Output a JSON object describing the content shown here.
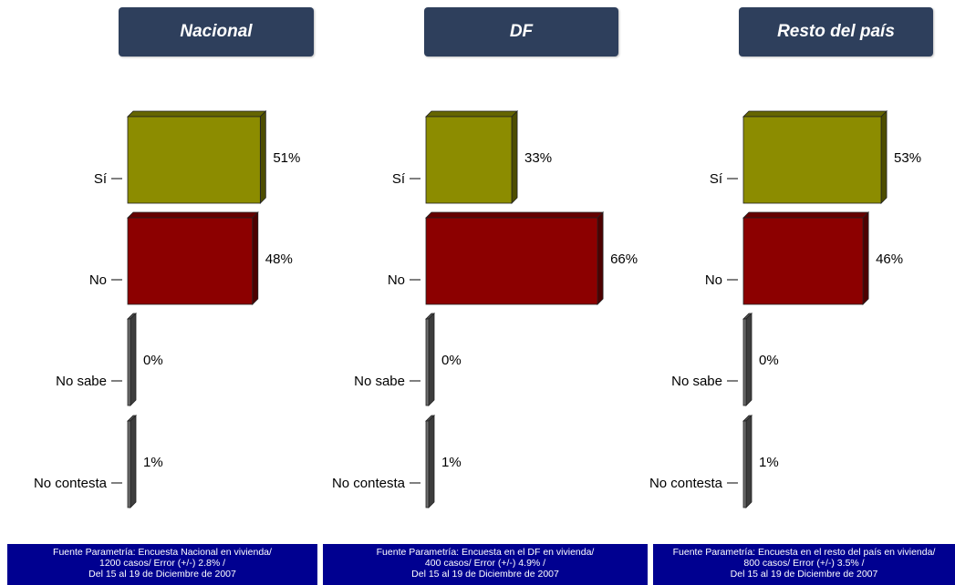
{
  "titles": [
    "Nacional",
    "DF",
    "Resto del país"
  ],
  "chart_data": [
    {
      "type": "bar",
      "title": "Nacional",
      "categories": [
        "Sí",
        "No",
        "No sabe",
        "No contesta"
      ],
      "values": [
        51,
        48,
        0,
        1
      ],
      "value_labels": [
        "51%",
        "48%",
        "0%",
        "1%"
      ]
    },
    {
      "type": "bar",
      "title": "DF",
      "categories": [
        "Sí",
        "No",
        "No sabe",
        "No contesta"
      ],
      "values": [
        33,
        66,
        0,
        1
      ],
      "value_labels": [
        "33%",
        "66%",
        "0%",
        "1%"
      ]
    },
    {
      "type": "bar",
      "title": "Resto del país",
      "categories": [
        "Sí",
        "No",
        "No sabe",
        "No contesta"
      ],
      "values": [
        53,
        46,
        0,
        1
      ],
      "value_labels": [
        "53%",
        "46%",
        "0%",
        "1%"
      ]
    }
  ],
  "colors": {
    "si": "#8c8c00",
    "no": "#8c0000",
    "other": "#6e6e6e",
    "title_bg": "#2e3f5c",
    "footer_bg": "#000090"
  },
  "footers": [
    [
      "Fuente Parametría: Encuesta Nacional en vivienda/",
      "1200 casos/ Error (+/-) 2.8% /",
      "Del 15 al 19 de Diciembre de 2007"
    ],
    [
      "Fuente Parametría: Encuesta en el DF en vivienda/",
      "400 casos/ Error (+/-) 4.9% /",
      "Del 15 al 19 de Diciembre de 2007"
    ],
    [
      "Fuente Parametría: Encuesta en el resto del país en vivienda/",
      "800 casos/ Error (+/-) 3.5% /",
      "Del 15 al 19 de Diciembre de 2007"
    ]
  ]
}
